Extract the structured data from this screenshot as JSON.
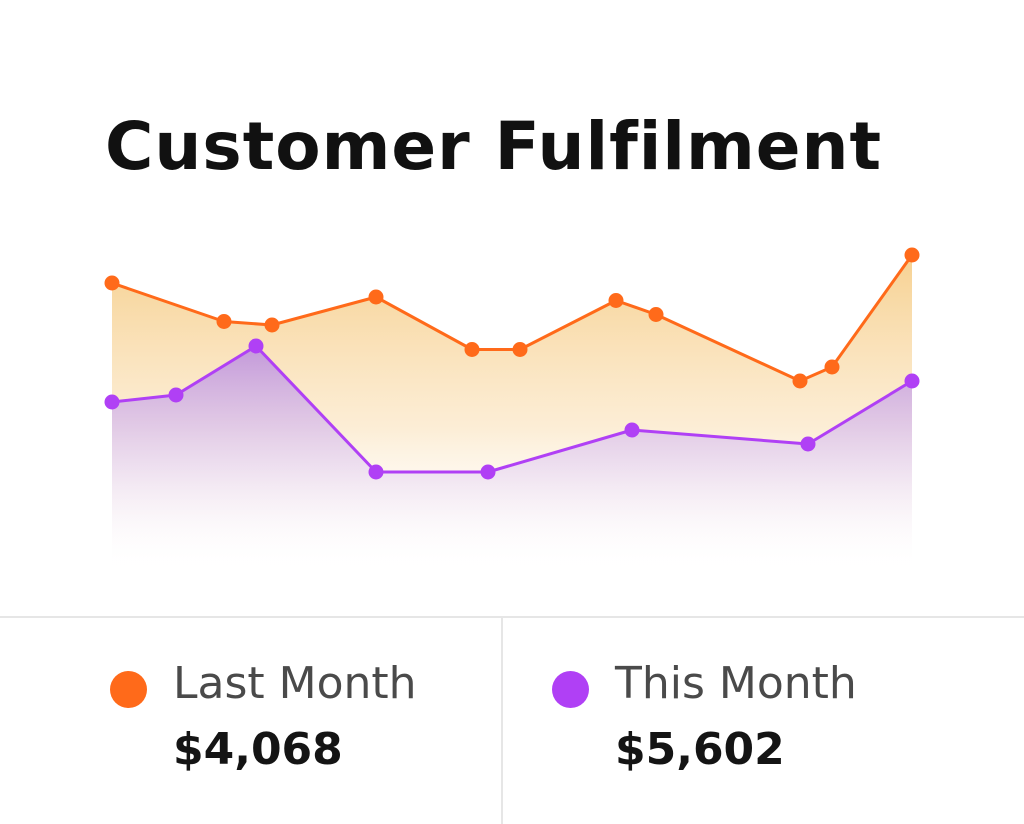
{
  "title": "Customer Fulfilment",
  "colors": {
    "last_month": "#ff6a1a",
    "this_month": "#b040f5",
    "last_month_fill_top": "#f7d69a",
    "this_month_fill_top": "#c49fe6"
  },
  "chart_data": {
    "type": "area",
    "title": "Customer Fulfilment",
    "xlabel": "",
    "ylabel": "",
    "grid": false,
    "legend": "bottom",
    "xlim": [
      0,
      100
    ],
    "ylim": [
      0,
      100
    ],
    "series": [
      {
        "name": "Last Month",
        "color": "#ff6a1a",
        "points": [
          {
            "x": 0,
            "y": 82
          },
          {
            "x": 14,
            "y": 71
          },
          {
            "x": 20,
            "y": 70
          },
          {
            "x": 33,
            "y": 78
          },
          {
            "x": 45,
            "y": 63
          },
          {
            "x": 51,
            "y": 63
          },
          {
            "x": 63,
            "y": 77
          },
          {
            "x": 68,
            "y": 73
          },
          {
            "x": 86,
            "y": 54
          },
          {
            "x": 90,
            "y": 58
          },
          {
            "x": 100,
            "y": 90
          }
        ]
      },
      {
        "name": "This Month",
        "color": "#b040f5",
        "points": [
          {
            "x": 0,
            "y": 48
          },
          {
            "x": 8,
            "y": 50
          },
          {
            "x": 18,
            "y": 64
          },
          {
            "x": 33,
            "y": 28
          },
          {
            "x": 47,
            "y": 28
          },
          {
            "x": 65,
            "y": 40
          },
          {
            "x": 87,
            "y": 36
          },
          {
            "x": 100,
            "y": 54
          }
        ]
      }
    ]
  },
  "legend": {
    "last_month": {
      "label": "Last Month",
      "value": "$4,068"
    },
    "this_month": {
      "label": "This Month",
      "value": "$5,602"
    }
  }
}
